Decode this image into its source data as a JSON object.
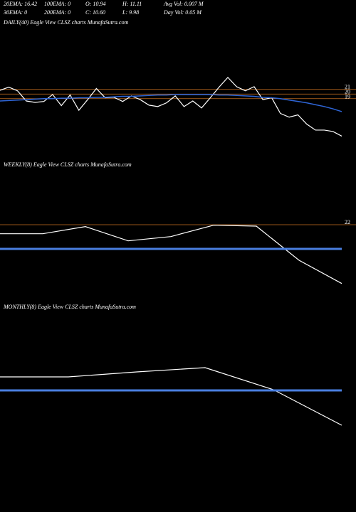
{
  "header": [
    [
      "20EMA: 16.42",
      "100EMA: 0",
      "O: 10.94",
      "H: 11.11",
      "Avg Vol: 0.007 M"
    ],
    [
      "30EMA: 0",
      "200EMA: 0",
      "C: 10.60",
      "L: 9.98",
      "Day Vol: 0.05 M"
    ]
  ],
  "chart_data": [
    {
      "type": "line",
      "title": "DAILY(40) Eagle  View  CLSZ charts MunafaSutra.com",
      "ylim": [
        6.5,
        34.2
      ],
      "yticks": [
        21,
        20,
        19
      ],
      "grid_color": "#c87020",
      "series": [
        {
          "color": "#ffffff",
          "values": [
            20.8,
            21.5,
            20.7,
            18.5,
            18.2,
            18.4,
            19.9,
            17.5,
            19.8,
            16.5,
            18.8,
            21.2,
            19.2,
            19.3,
            18.4,
            19.6,
            18.8,
            17.6,
            17.3,
            18.1,
            19.6,
            17.3,
            18.5,
            17.0,
            19.2,
            21.5,
            23.6,
            21.6,
            20.7,
            21.6,
            18.8,
            19.2,
            15.8,
            15.0,
            15.5,
            13.5,
            12.2,
            12.2,
            11.9,
            10.9
          ]
        },
        {
          "color": "#2f66d8",
          "values": [
            18.5,
            18.6,
            18.7,
            18.8,
            18.9,
            19.0,
            19.0,
            19.1,
            19.1,
            19.2,
            19.2,
            19.3,
            19.3,
            19.4,
            19.5,
            19.5,
            19.6,
            19.7,
            19.8,
            19.8,
            19.9,
            19.9,
            19.9,
            19.9,
            19.9,
            19.8,
            19.8,
            19.7,
            19.6,
            19.5,
            19.3,
            19.2,
            19.0,
            18.7,
            18.4,
            18.1,
            17.7,
            17.3,
            16.8,
            16.2
          ]
        }
      ]
    },
    {
      "type": "line",
      "title": "WEEKLY(8) Eagle  View  CLSZ charts MunafaSutra.com",
      "ylim": [
        6.4,
        33.4
      ],
      "yticks": [
        22
      ],
      "grid_color": "#c87020",
      "series": [
        {
          "color": "#ffffff",
          "values": [
            20.1,
            20.1,
            21.6,
            18.6,
            19.5,
            21.9,
            21.7,
            14.5,
            9.6
          ]
        },
        {
          "color": "#4a7fe0",
          "values": [
            16.9,
            16.9,
            16.9,
            16.9,
            16.9,
            16.9,
            16.9,
            16.9,
            16.9
          ]
        }
      ]
    },
    {
      "type": "line",
      "title": "MONTHLY(8) Eagle  View  CLSZ charts MunafaSutra.com",
      "ylim": [
        6.5,
        33.5
      ],
      "yticks": [],
      "grid_color": "#c87020",
      "series": [
        {
          "color": "#ffffff",
          "values": [
            20.0,
            20.0,
            21.05,
            21.95,
            17.3,
            9.8
          ]
        },
        {
          "color": "#4a7fe0",
          "values": [
            17.15,
            17.15,
            17.15,
            17.15,
            17.15,
            17.15
          ]
        }
      ]
    }
  ]
}
